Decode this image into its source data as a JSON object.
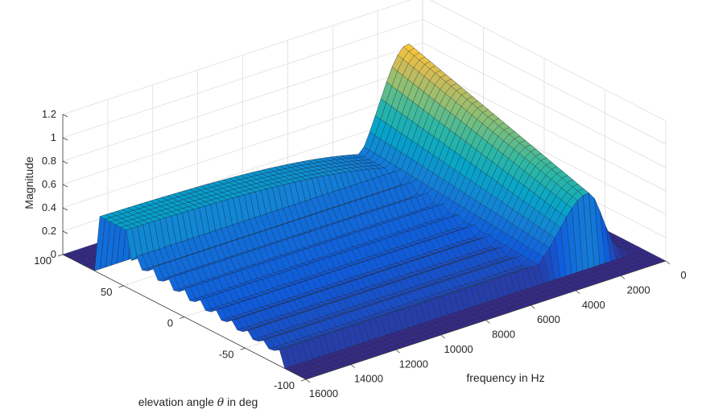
{
  "chart_data": {
    "type": "surface",
    "title": "",
    "xlabel": "frequency in Hz",
    "ylabel_prefix": "elevation angle ",
    "ylabel_symbol": "θ",
    "ylabel_suffix": " in deg",
    "zlabel": "Magnitude",
    "xlim": [
      0,
      16000
    ],
    "ylim": [
      -100,
      100
    ],
    "zlim": [
      0,
      1.2
    ],
    "x_ticks": [
      0,
      2000,
      4000,
      6000,
      8000,
      10000,
      12000,
      14000,
      16000
    ],
    "y_ticks": [
      -100,
      -50,
      0,
      50,
      100
    ],
    "z_ticks": [
      0,
      0.2,
      0.4,
      0.6,
      0.8,
      1,
      1.2
    ],
    "x_tick_labels": [
      "0",
      "2000",
      "4000",
      "6000",
      "8000",
      "10000",
      "12000",
      "14000",
      "16000"
    ],
    "y_tick_labels": [
      "-100",
      "-50",
      "0",
      "50",
      "100"
    ],
    "z_tick_labels": [
      "0",
      "0.2",
      "0.4",
      "0.6",
      "0.8",
      "1",
      "1.2"
    ],
    "grid": true,
    "colormap": "parula",
    "colors": [
      "#352a87",
      "#0f5cdd",
      "#1481d6",
      "#06a4ca",
      "#2eb7a4",
      "#87bf77",
      "#d1bb59",
      "#fec832",
      "#f9fb0e"
    ],
    "surface": {
      "description_of_values": "magnitude vs frequency (Hz) and elevation angle (deg)",
      "elevation_support_deg": [
        -80,
        70
      ],
      "peak_frequency_hz": 2300,
      "peak_magnitude": 1.1,
      "peak_elevation_deg": 70,
      "high_frequency_plateau": 0.45,
      "edge_elevation_deg": 50,
      "edge_magnitude": 0.5
    }
  }
}
